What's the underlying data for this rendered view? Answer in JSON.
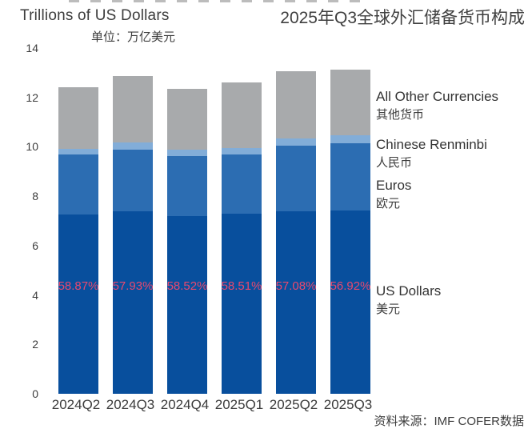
{
  "source_note": "资料来源：IMF COFER数据",
  "colors": {
    "us_dollars": "#084f9d",
    "euros": "#2c6db2",
    "chinese_renminbi": "#82add8",
    "all_other_currencies": "#a8aaac",
    "percent_label": "#e8486e",
    "text": "#3d3d3d"
  },
  "chart_data": {
    "type": "bar",
    "stacked": true,
    "title": "2025年Q3全球外汇储备货币构成",
    "unit_label": "Trillions of US Dollars",
    "unit_label_zh": "单位：万亿美元",
    "categories": [
      "2024Q2",
      "2024Q3",
      "2024Q4",
      "2025Q1",
      "2025Q2",
      "2025Q3"
    ],
    "series": [
      {
        "name": "US Dollars",
        "name_zh": "美元",
        "color": "#084f9d",
        "values": [
          7.25,
          7.39,
          7.19,
          7.3,
          7.39,
          7.43
        ]
      },
      {
        "name": "Euros",
        "name_zh": "欧元",
        "color": "#2c6db2",
        "values": [
          2.43,
          2.5,
          2.43,
          2.4,
          2.67,
          2.7
        ]
      },
      {
        "name": "Chinese Renminbi",
        "name_zh": "人民币",
        "color": "#82add8",
        "values": [
          0.24,
          0.29,
          0.25,
          0.25,
          0.27,
          0.33
        ]
      },
      {
        "name": "All Other Currencies",
        "name_zh": "其他货币",
        "color": "#a8aaac",
        "values": [
          2.48,
          2.68,
          2.49,
          2.65,
          2.72,
          2.65
        ]
      }
    ],
    "totals": [
      12.4,
      12.86,
      12.36,
      12.6,
      13.05,
      13.11
    ],
    "bar_labels": {
      "series": "US Dollars",
      "values": [
        "58.87%",
        "57.93%",
        "58.52%",
        "58.51%",
        "57.08%",
        "56.92%"
      ],
      "color": "#e8486e"
    },
    "yticks": [
      0,
      2,
      4,
      6,
      8,
      10,
      12,
      14
    ],
    "ylim": [
      0,
      14
    ],
    "grid": false,
    "legend_position": "right"
  }
}
